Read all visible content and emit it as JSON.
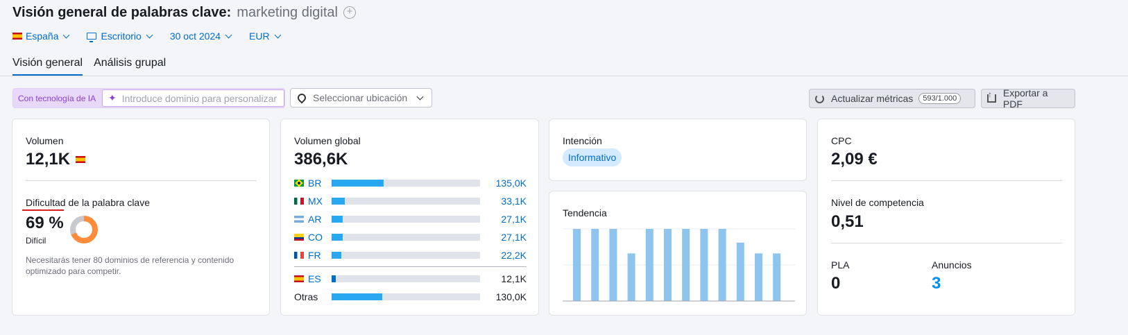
{
  "header": {
    "title": "Visión general de palabras clave:",
    "keyword": "marketing digital",
    "filters": {
      "country": "España",
      "device": "Escritorio",
      "date": "30 oct 2024",
      "currency": "EUR"
    }
  },
  "tabs": [
    {
      "label": "Visión general",
      "active": true
    },
    {
      "label": "Análisis grupal",
      "active": false
    }
  ],
  "toolbar": {
    "ai_label": "Con tecnología de IA",
    "ai_placeholder": "Introduce dominio para personalizar",
    "location_placeholder": "Seleccionar ubicación",
    "refresh_label": "Actualizar métricas",
    "refresh_counter": "593/1.000",
    "export_label": "Exportar a PDF"
  },
  "volume_card": {
    "label": "Volumen",
    "value": "12,1K",
    "kd_label_a": "Dificultad",
    "kd_label_b": " de la palabra clave",
    "kd_value": "69 %",
    "kd_percent": 69,
    "kd_level": "Difícil",
    "kd_note": "Necesitarás tener 80 dominios de referencia y contenido optimizado para competir."
  },
  "global_card": {
    "label": "Volumen global",
    "value": "386,6K",
    "countries": [
      {
        "code": "BR",
        "value": "135,0K",
        "share": 0.35
      },
      {
        "code": "MX",
        "value": "33,1K",
        "share": 0.09
      },
      {
        "code": "AR",
        "value": "27,1K",
        "share": 0.075
      },
      {
        "code": "CO",
        "value": "27,1K",
        "share": 0.075
      },
      {
        "code": "FR",
        "value": "22,2K",
        "share": 0.065
      }
    ],
    "es": {
      "code": "ES",
      "value": "12,1K",
      "share": 0.03
    },
    "others": {
      "label": "Otras",
      "value": "130,0K",
      "share": 0.34
    }
  },
  "intent_card": {
    "label": "Intención",
    "badge": "Informativo"
  },
  "trend_card": {
    "label": "Tendencia",
    "chart_data": {
      "type": "bar",
      "values": [
        100,
        100,
        100,
        66,
        100,
        100,
        100,
        100,
        100,
        81,
        66,
        66
      ],
      "ylim": [
        0,
        100
      ]
    }
  },
  "cpc_card": {
    "cpc_label": "CPC",
    "cpc_value": "2,09 €",
    "comp_label": "Nivel de competencia",
    "comp_value": "0,51",
    "pla_label": "PLA",
    "pla_value": "0",
    "ads_label": "Anuncios",
    "ads_value": "3"
  },
  "colors": {
    "accent": "#006dca",
    "bar": "#2aa8ef",
    "trend_bar": "#8ec5ee",
    "kd_orange": "#ff8c3b",
    "ai_purple": "#8a3fd8"
  }
}
